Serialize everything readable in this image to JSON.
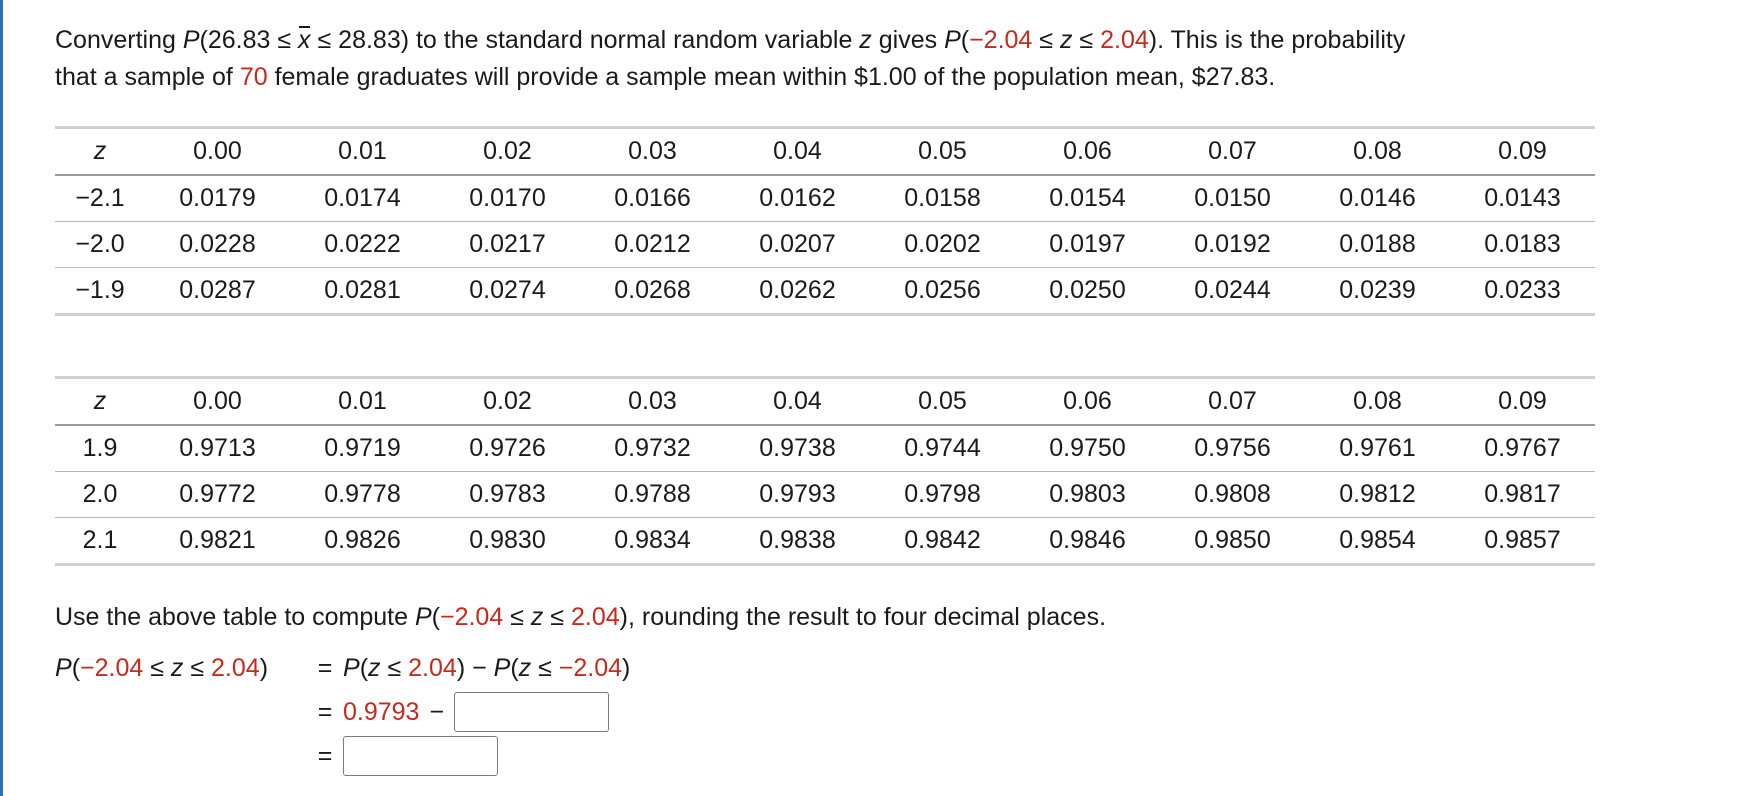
{
  "intro": {
    "p1": "Converting ",
    "p2": "P",
    "p3": "(26.83 ≤ ",
    "xbar": "x",
    "p4": " ≤ 28.83) to the standard normal random variable ",
    "p5": "z",
    "p6": " gives ",
    "p7": "P",
    "p8": "(",
    "p9": "−2.04",
    "p10": " ≤ ",
    "p11": "z",
    "p12": " ≤ ",
    "p13": "2.04",
    "p14": "). This is the probability",
    "p15": "that a sample of ",
    "p16": "70",
    "p17": " female graduates will provide a sample mean within $1.00 of the population mean, $27.83."
  },
  "table1": {
    "header": [
      "z",
      "0.00",
      "0.01",
      "0.02",
      "0.03",
      "0.04",
      "0.05",
      "0.06",
      "0.07",
      "0.08",
      "0.09"
    ],
    "rows": [
      [
        "−2.1",
        "0.0179",
        "0.0174",
        "0.0170",
        "0.0166",
        "0.0162",
        "0.0158",
        "0.0154",
        "0.0150",
        "0.0146",
        "0.0143"
      ],
      [
        "−2.0",
        "0.0228",
        "0.0222",
        "0.0217",
        "0.0212",
        "0.0207",
        "0.0202",
        "0.0197",
        "0.0192",
        "0.0188",
        "0.0183"
      ],
      [
        "−1.9",
        "0.0287",
        "0.0281",
        "0.0274",
        "0.0268",
        "0.0262",
        "0.0256",
        "0.0250",
        "0.0244",
        "0.0239",
        "0.0233"
      ]
    ]
  },
  "table2": {
    "header": [
      "z",
      "0.00",
      "0.01",
      "0.02",
      "0.03",
      "0.04",
      "0.05",
      "0.06",
      "0.07",
      "0.08",
      "0.09"
    ],
    "rows": [
      [
        "1.9",
        "0.9713",
        "0.9719",
        "0.9726",
        "0.9732",
        "0.9738",
        "0.9744",
        "0.9750",
        "0.9756",
        "0.9761",
        "0.9767"
      ],
      [
        "2.0",
        "0.9772",
        "0.9778",
        "0.9783",
        "0.9788",
        "0.9793",
        "0.9798",
        "0.9803",
        "0.9808",
        "0.9812",
        "0.9817"
      ],
      [
        "2.1",
        "0.9821",
        "0.9826",
        "0.9830",
        "0.9834",
        "0.9838",
        "0.9842",
        "0.9846",
        "0.9850",
        "0.9854",
        "0.9857"
      ]
    ]
  },
  "question": {
    "q1": "Use the above table to compute ",
    "q2": "P",
    "q3": "(",
    "q4": "−2.04",
    "q5": " ≤ ",
    "q6": "z",
    "q7": " ≤ ",
    "q8": "2.04",
    "q9": "), rounding the result to four decimal places."
  },
  "work": {
    "lhs_p": "P",
    "lhs_open": "(",
    "lhs_low": "−2.04",
    "lhs_le1": " ≤ ",
    "lhs_z": "z",
    "lhs_le2": " ≤ ",
    "lhs_high": "2.04",
    "lhs_close": ")",
    "eq": "=",
    "r1_p1": "P",
    "r1_open1": "(",
    "r1_z1": "z",
    "r1_le1": " ≤ ",
    "r1_v1": "2.04",
    "r1_close1": ")",
    "r1_minus": " − ",
    "r1_p2": "P",
    "r1_open2": "(",
    "r1_z2": "z",
    "r1_le2": " ≤ ",
    "r1_v2": "−2.04",
    "r1_close2": ")",
    "r2_value": "0.9793",
    "r2_minus": "−",
    "box1_value": "",
    "box2_value": ""
  },
  "colors": {
    "accent_red": "#c7291c",
    "left_bar": "#2f6fb5"
  }
}
